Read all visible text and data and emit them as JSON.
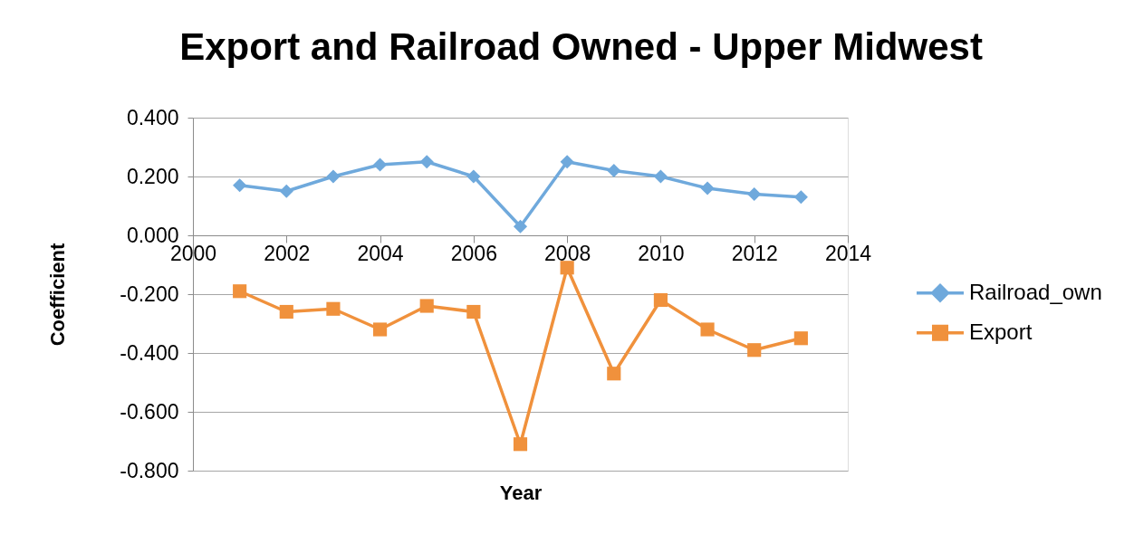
{
  "chart_data": {
    "type": "line",
    "title": "Export and Railroad Owned - Upper Midwest",
    "xlabel": "Year",
    "ylabel": "Coefficient",
    "x": [
      2001,
      2002,
      2003,
      2004,
      2005,
      2006,
      2007,
      2008,
      2009,
      2010,
      2011,
      2012,
      2013
    ],
    "series": [
      {
        "name": "Railroad_own",
        "color": "#6fa9dc",
        "marker": "diamond",
        "values": [
          0.17,
          0.15,
          0.2,
          0.24,
          0.25,
          0.2,
          0.03,
          0.25,
          0.22,
          0.2,
          0.16,
          0.14,
          0.13
        ]
      },
      {
        "name": "Export",
        "color": "#f0913c",
        "marker": "square",
        "values": [
          -0.19,
          -0.26,
          -0.25,
          -0.32,
          -0.24,
          -0.26,
          -0.71,
          -0.11,
          -0.47,
          -0.22,
          -0.32,
          -0.39,
          -0.35
        ]
      }
    ],
    "xlim": [
      2000,
      2014
    ],
    "xticks": [
      2000,
      2002,
      2004,
      2006,
      2008,
      2010,
      2012,
      2014
    ],
    "ylim": [
      -0.8,
      0.4
    ],
    "yticks": [
      {
        "value": -0.8,
        "label": "-0.800"
      },
      {
        "value": -0.6,
        "label": "-0.600"
      },
      {
        "value": -0.4,
        "label": "-0.400"
      },
      {
        "value": -0.2,
        "label": "-0.200"
      },
      {
        "value": 0,
        "label": "0.000"
      },
      {
        "value": 0.2,
        "label": "0.200"
      },
      {
        "value": 0.4,
        "label": "0.400"
      }
    ],
    "grid": "y",
    "legend": "right",
    "line_style": "solid"
  }
}
